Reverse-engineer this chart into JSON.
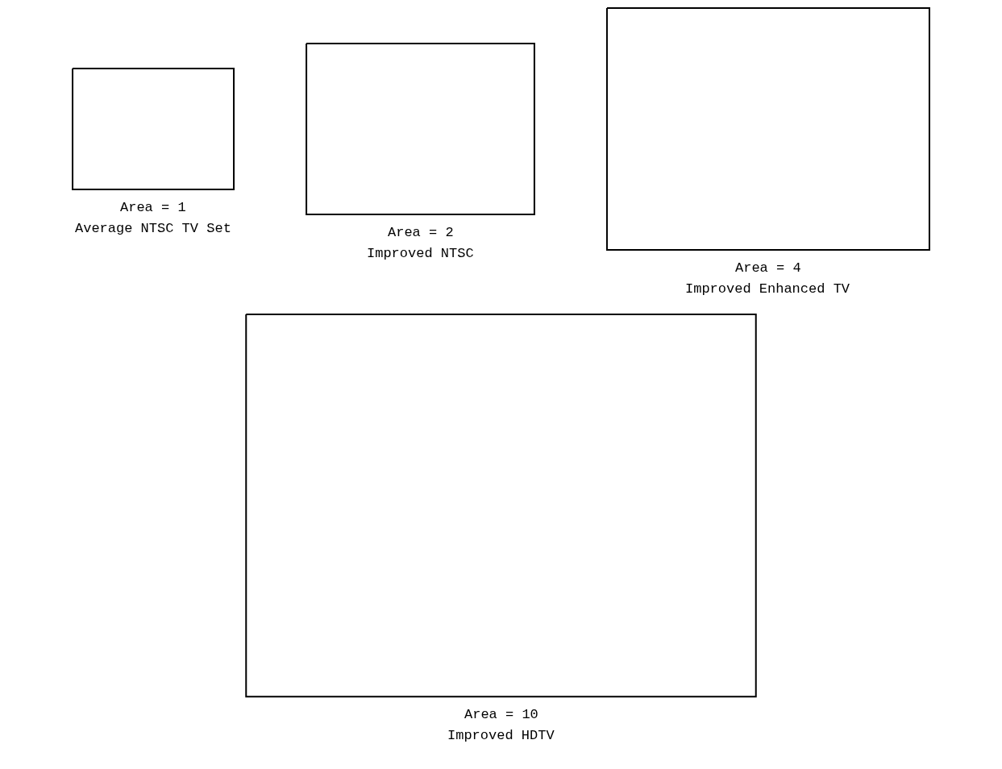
{
  "chart_data": {
    "type": "other",
    "categories": [
      "Average NTSC TV Set",
      "Improved NTSC",
      "Improved Enhanced TV",
      "Improved HDTV"
    ],
    "values": [
      1,
      2,
      4,
      10
    ],
    "value_labels": [
      "Area = 1",
      "Area = 2",
      "Area = 4",
      "Area = 10"
    ]
  }
}
